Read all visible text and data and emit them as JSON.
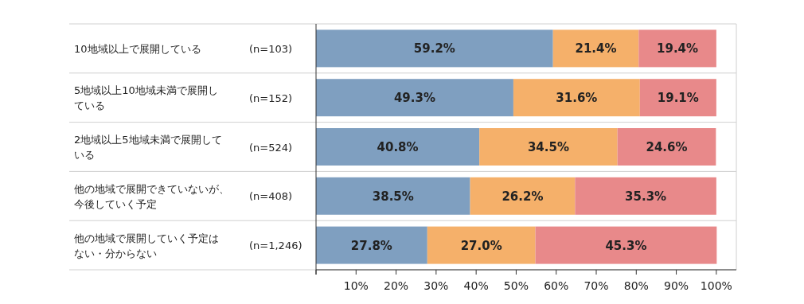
{
  "chart_data": {
    "type": "bar",
    "orientation": "horizontal",
    "stacked": true,
    "categories": [
      "10地域以上で展開している",
      "5地域以上10地域未満で展開している",
      "2地域以上5地域未満で展開している",
      "他の地域で展開できていないが、今後していく予定",
      "他の地域で展開していく予定はない・分からない"
    ],
    "y2_categories": [
      "(n=103)",
      "(n=152)",
      "(n=524)",
      "(n=408)",
      "(n=1,246)"
    ],
    "series": [
      {
        "color": "#7f9fc0",
        "values": [
          59.2,
          49.3,
          40.8,
          38.5,
          27.8
        ],
        "value_labels": [
          "59.2%",
          "49.3%",
          "40.8%",
          "38.5%",
          "27.8%"
        ]
      },
      {
        "color": "#f5b06a",
        "values": [
          21.4,
          31.6,
          34.5,
          26.2,
          27.0
        ],
        "value_labels": [
          "21.4%",
          "31.6%",
          "34.5%",
          "26.2%",
          "27.0%"
        ]
      },
      {
        "color": "#e8898a",
        "values": [
          19.4,
          19.1,
          24.6,
          35.3,
          45.3
        ],
        "value_labels": [
          "19.4%",
          "19.1%",
          "24.6%",
          "35.3%",
          "45.3%"
        ]
      }
    ],
    "xlim": [
      0,
      105
    ],
    "xticks": [
      {
        "value": 0,
        "label": null
      },
      {
        "value": 10,
        "label": "10%"
      },
      {
        "value": 20,
        "label": "20%"
      },
      {
        "value": 30,
        "label": "30%"
      },
      {
        "value": 40,
        "label": "40%"
      },
      {
        "value": 50,
        "label": "50%"
      },
      {
        "value": 60,
        "label": "60%"
      },
      {
        "value": 70,
        "label": "70%"
      },
      {
        "value": 80,
        "label": "80%"
      },
      {
        "value": 90,
        "label": "90%"
      },
      {
        "value": 100,
        "label": "100%"
      }
    ]
  }
}
